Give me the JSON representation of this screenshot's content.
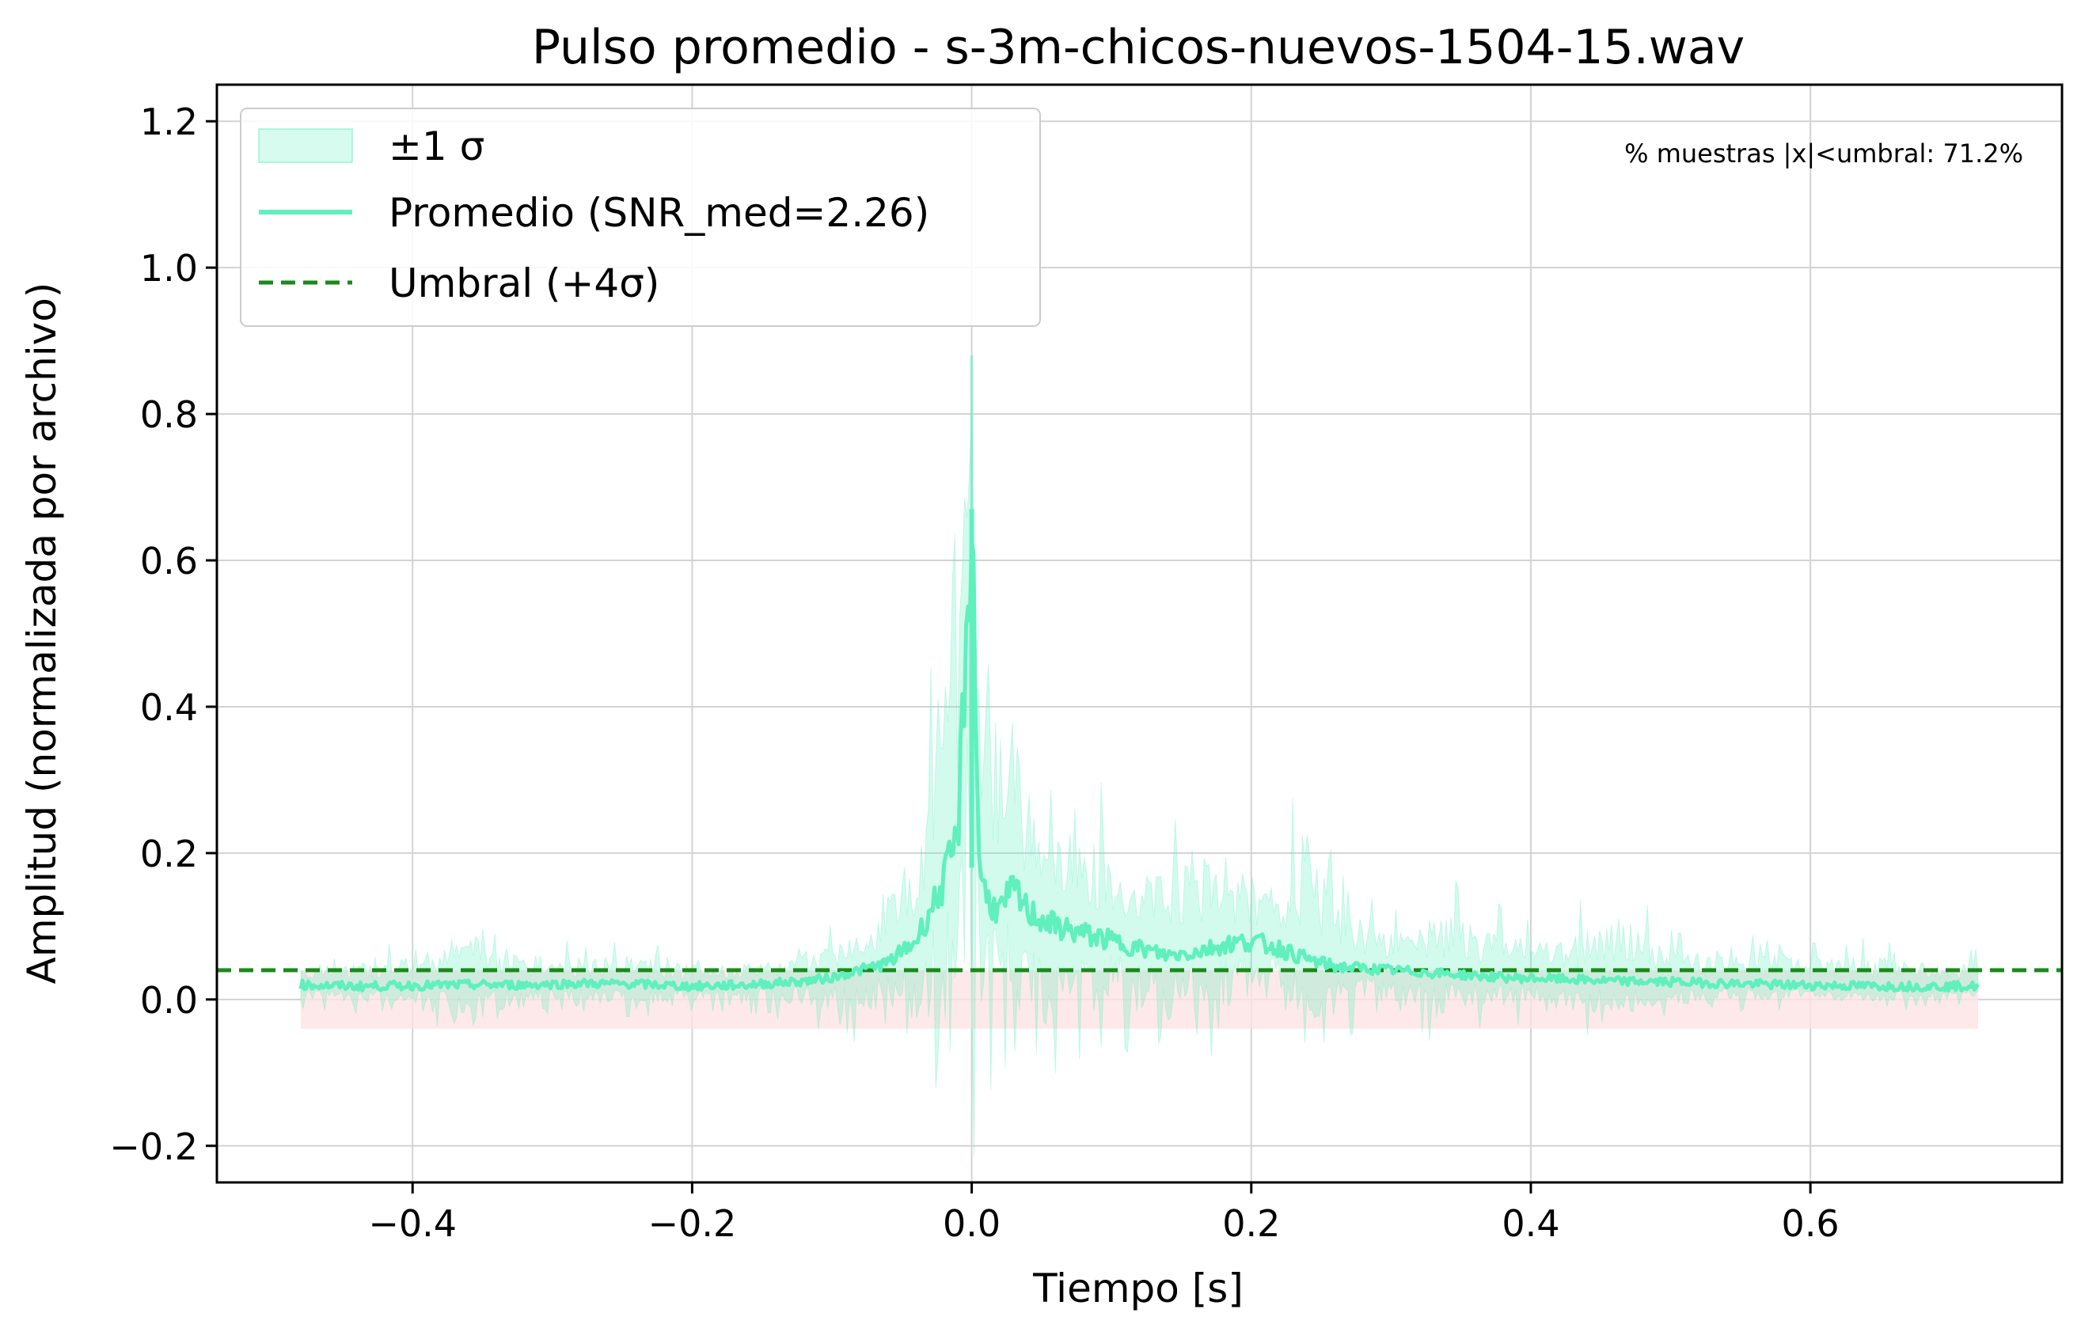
{
  "chart_data": {
    "type": "line",
    "title": "Pulso promedio - s-3m-chicos-nuevos-1504-15.wav",
    "xlabel": "Tiempo [s]",
    "ylabel": "Amplitud (normalizada por archivo)",
    "xlim": [
      -0.54,
      0.78
    ],
    "ylim": [
      -0.25,
      1.25
    ],
    "xticks": [
      -0.4,
      -0.2,
      0.0,
      0.2,
      0.4,
      0.6
    ],
    "xtick_labels": [
      "−0.4",
      "−0.2",
      "0.0",
      "0.2",
      "0.4",
      "0.6"
    ],
    "yticks": [
      -0.2,
      0.0,
      0.2,
      0.4,
      0.6,
      0.8,
      1.0,
      1.2
    ],
    "ytick_labels": [
      "−0.2",
      "0.0",
      "0.2",
      "0.4",
      "0.6",
      "0.8",
      "1.0",
      "1.2"
    ],
    "grid": true,
    "legend_position": "top-left",
    "legend": {
      "band": "±1 σ",
      "mean": "Promedio (SNR_med=2.26)",
      "threshold": "Umbral (+4σ)"
    },
    "annotation": "% muestras |x|<umbral: 71.2%",
    "threshold": 0.04,
    "noise_band": [
      -0.04,
      0.04
    ],
    "colors": {
      "mean": "#5ff0be",
      "band": "#5ff0be",
      "threshold": "#1a8a1a",
      "noise_band": "#fde3e3",
      "grid": "#d3d3d3"
    },
    "series": [
      {
        "name": "Promedio (SNR_med=2.26)",
        "x": [
          -0.48,
          -0.44,
          -0.4,
          -0.36,
          -0.32,
          -0.28,
          -0.24,
          -0.2,
          -0.16,
          -0.12,
          -0.1,
          -0.08,
          -0.06,
          -0.04,
          -0.02,
          -0.01,
          0.0,
          0.005,
          0.01,
          0.02,
          0.03,
          0.04,
          0.06,
          0.08,
          0.1,
          0.12,
          0.14,
          0.16,
          0.18,
          0.2,
          0.22,
          0.24,
          0.26,
          0.3,
          0.34,
          0.38,
          0.42,
          0.46,
          0.5,
          0.54,
          0.58,
          0.62,
          0.66,
          0.7,
          0.72
        ],
        "y": [
          0.02,
          0.018,
          0.019,
          0.02,
          0.02,
          0.022,
          0.021,
          0.018,
          0.02,
          0.025,
          0.03,
          0.04,
          0.05,
          0.08,
          0.16,
          0.22,
          0.67,
          0.2,
          0.14,
          0.12,
          0.15,
          0.12,
          0.1,
          0.09,
          0.08,
          0.07,
          0.06,
          0.065,
          0.075,
          0.08,
          0.07,
          0.055,
          0.045,
          0.04,
          0.035,
          0.03,
          0.028,
          0.025,
          0.024,
          0.022,
          0.02,
          0.019,
          0.018,
          0.018,
          0.018
        ]
      },
      {
        "name": "±1 σ upper",
        "x": [
          -0.48,
          -0.44,
          -0.4,
          -0.36,
          -0.32,
          -0.28,
          -0.24,
          -0.2,
          -0.16,
          -0.12,
          -0.1,
          -0.08,
          -0.06,
          -0.04,
          -0.02,
          -0.01,
          0.0,
          0.005,
          0.01,
          0.02,
          0.03,
          0.04,
          0.06,
          0.08,
          0.1,
          0.12,
          0.14,
          0.16,
          0.18,
          0.2,
          0.22,
          0.24,
          0.26,
          0.3,
          0.34,
          0.38,
          0.42,
          0.46,
          0.5,
          0.54,
          0.58,
          0.62,
          0.66,
          0.7,
          0.72
        ],
        "y": [
          0.05,
          0.05,
          0.06,
          0.1,
          0.05,
          0.06,
          0.06,
          0.05,
          0.05,
          0.06,
          0.08,
          0.1,
          0.14,
          0.22,
          0.45,
          0.5,
          0.88,
          0.42,
          0.35,
          0.38,
          0.4,
          0.3,
          0.26,
          0.22,
          0.24,
          0.18,
          0.2,
          0.22,
          0.17,
          0.16,
          0.15,
          0.24,
          0.14,
          0.1,
          0.12,
          0.09,
          0.08,
          0.12,
          0.07,
          0.06,
          0.07,
          0.06,
          0.06,
          0.05,
          0.05
        ]
      },
      {
        "name": "±1 σ lower",
        "x": [
          -0.48,
          -0.44,
          -0.4,
          -0.36,
          -0.32,
          -0.28,
          -0.24,
          -0.2,
          -0.16,
          -0.12,
          -0.1,
          -0.08,
          -0.06,
          -0.04,
          -0.02,
          -0.01,
          0.0,
          0.005,
          0.01,
          0.02,
          0.03,
          0.04,
          0.06,
          0.08,
          0.1,
          0.12,
          0.14,
          0.16,
          0.18,
          0.2,
          0.22,
          0.24,
          0.26,
          0.3,
          0.34,
          0.38,
          0.42,
          0.46,
          0.5,
          0.54,
          0.58,
          0.62,
          0.66,
          0.7,
          0.72
        ],
        "y": [
          -0.005,
          -0.01,
          -0.01,
          -0.05,
          -0.01,
          -0.015,
          -0.02,
          -0.01,
          -0.01,
          -0.02,
          -0.03,
          -0.04,
          -0.05,
          -0.07,
          -0.1,
          -0.08,
          -0.05,
          -0.07,
          -0.08,
          -0.06,
          -0.07,
          -0.05,
          -0.1,
          -0.06,
          -0.04,
          -0.05,
          -0.06,
          -0.05,
          -0.04,
          -0.03,
          -0.03,
          -0.09,
          -0.03,
          -0.02,
          -0.04,
          -0.02,
          -0.02,
          -0.04,
          -0.02,
          -0.01,
          -0.01,
          -0.01,
          -0.01,
          -0.005,
          -0.005
        ]
      }
    ]
  }
}
